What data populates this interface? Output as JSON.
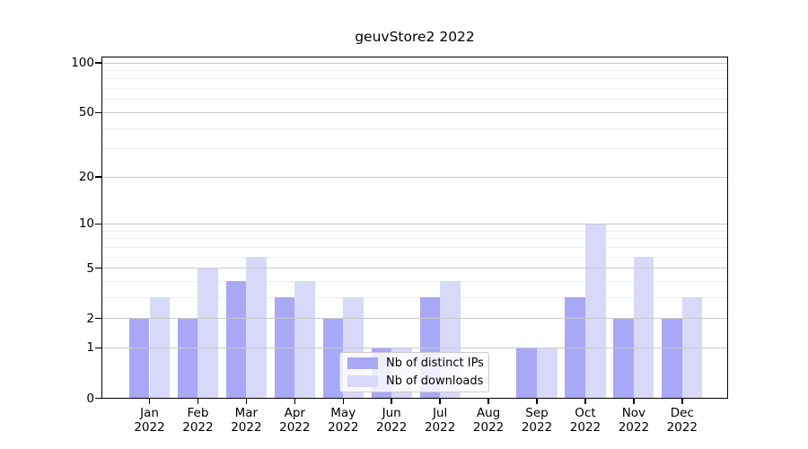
{
  "chart_data": {
    "type": "bar",
    "title": "geuvStore2 2022",
    "categories": [
      "Jan 2022",
      "Feb 2022",
      "Mar 2022",
      "Apr 2022",
      "May 2022",
      "Jun 2022",
      "Jul 2022",
      "Aug 2022",
      "Sep 2022",
      "Oct 2022",
      "Nov 2022",
      "Dec 2022"
    ],
    "series": [
      {
        "name": "Nb of distinct IPs",
        "color": "#a8a8f6",
        "values": [
          2,
          2,
          4,
          3,
          2,
          1,
          3,
          0,
          1,
          3,
          2,
          2
        ]
      },
      {
        "name": "Nb of downloads",
        "color": "#d8d8f8",
        "values": [
          3,
          5,
          6,
          4,
          3,
          1,
          4,
          0,
          1,
          10,
          6,
          3
        ]
      }
    ],
    "yticks": [
      0,
      1,
      2,
      5,
      10,
      20,
      50,
      100
    ],
    "y_minor_gridlines": [
      3,
      4,
      6,
      7,
      8,
      9,
      30,
      40,
      60,
      70,
      80,
      90
    ],
    "scale": "log10(value+1)",
    "ylim": [
      0,
      110
    ],
    "grid": true,
    "legend_position": "lower center"
  },
  "colors": {
    "major_grid": "#c9c9c9",
    "minor_grid": "#ededed",
    "axis": "#000000",
    "background": "#ffffff",
    "legend_border": "#cccccc"
  }
}
